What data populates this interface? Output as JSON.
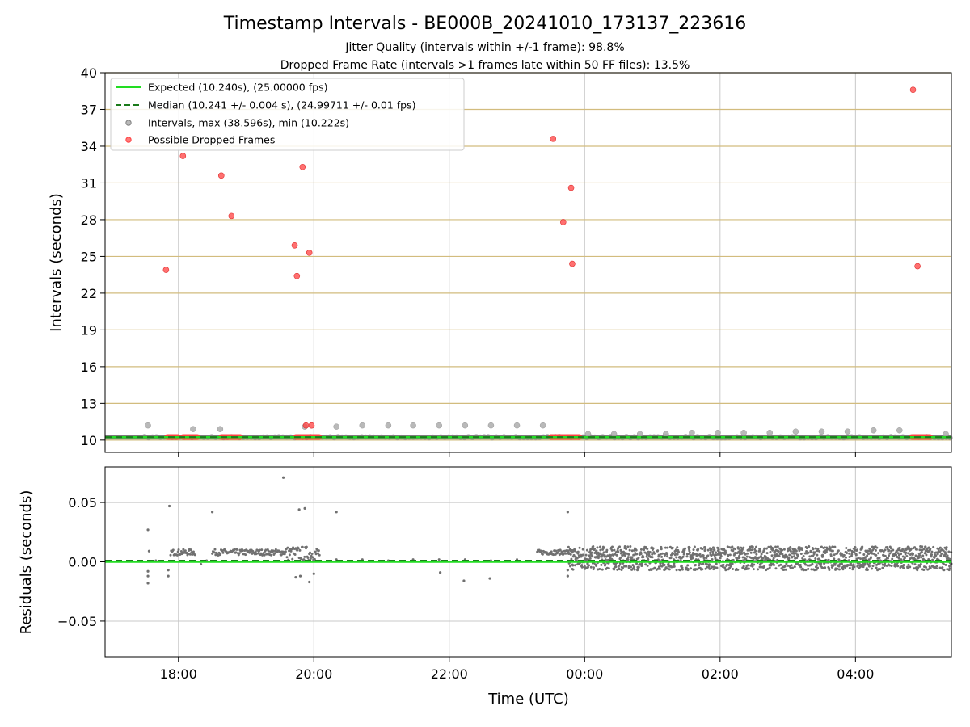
{
  "chart_data": [
    {
      "type": "scatter",
      "title": "Timestamp Intervals - BE000B_20241010_173137_223616",
      "subtitle_1": "Jitter Quality (intervals within +/-1 frame): 98.8%",
      "subtitle_2": "Dropped Frame Rate (intervals >1 frames late within 50 FF files): 13.5%",
      "xlabel": "",
      "ylabel": "Intervals (seconds)",
      "xlim": [
        "2024-10-10T16:55",
        "2024-10-11T05:25"
      ],
      "ylim": [
        9,
        40
      ],
      "yticks": [
        10,
        13,
        16,
        19,
        22,
        25,
        28,
        31,
        34,
        37,
        40
      ],
      "grid_color_horizontal": "#d2bc7e",
      "grid": true,
      "legend_position": "top-left",
      "legend": [
        "Expected (10.240s), (25.00000 fps)",
        "Median (10.241 +/- 0.004 s), (24.99711 +/- 0.01 fps)",
        "Intervals, max (38.596s), min (10.222s)",
        "Possible Dropped Frames"
      ],
      "expected_interval": 10.24,
      "median_interval": 10.241,
      "series": [
        {
          "name": "Possible Dropped Frames",
          "color": "#ff4040",
          "points": [
            [
              "17:49",
              23.9
            ],
            [
              "18:04",
              33.2
            ],
            [
              "18:38",
              31.6
            ],
            [
              "18:47",
              28.3
            ],
            [
              "19:43",
              25.9
            ],
            [
              "19:45",
              23.4
            ],
            [
              "19:50",
              32.3
            ],
            [
              "19:56",
              25.3
            ],
            [
              "19:53",
              11.2
            ],
            [
              "19:58",
              11.2
            ],
            [
              "23:32",
              34.6
            ],
            [
              "23:41",
              27.8
            ],
            [
              "23:48",
              30.6
            ],
            [
              "23:49",
              24.4
            ],
            [
              "04:51",
              38.6
            ],
            [
              "04:55",
              24.2
            ]
          ],
          "clusters": [
            [
              "17:50",
              "18:00"
            ],
            [
              "18:04",
              "18:17"
            ],
            [
              "18:38",
              "18:55"
            ],
            [
              "19:44",
              "20:05"
            ],
            [
              "23:30",
              "23:45"
            ],
            [
              "23:45",
              "23:56"
            ],
            [
              "04:50",
              "05:06"
            ]
          ]
        },
        {
          "name": "Intervals, max (38.596s), min (10.222s)",
          "color": "#808080",
          "points": [
            [
              "17:33",
              11.2
            ],
            [
              "18:13",
              10.9
            ],
            [
              "18:37",
              10.9
            ],
            [
              "19:52",
              11.1
            ],
            [
              "20:20",
              11.1
            ],
            [
              "20:43",
              11.2
            ],
            [
              "21:06",
              11.2
            ],
            [
              "21:28",
              11.2
            ],
            [
              "21:51",
              11.2
            ],
            [
              "22:14",
              11.2
            ],
            [
              "22:37",
              11.2
            ],
            [
              "23:00",
              11.2
            ],
            [
              "23:23",
              11.2
            ],
            [
              "00:03",
              10.5
            ],
            [
              "00:26",
              10.5
            ],
            [
              "00:49",
              10.5
            ],
            [
              "01:12",
              10.5
            ],
            [
              "01:35",
              10.6
            ],
            [
              "01:58",
              10.6
            ],
            [
              "02:21",
              10.6
            ],
            [
              "02:44",
              10.6
            ],
            [
              "03:07",
              10.7
            ],
            [
              "03:30",
              10.7
            ],
            [
              "03:53",
              10.7
            ],
            [
              "04:16",
              10.8
            ],
            [
              "04:39",
              10.8
            ],
            [
              "05:20",
              10.5
            ]
          ]
        }
      ]
    },
    {
      "type": "scatter",
      "xlabel": "Time (UTC)",
      "ylabel": "Residuals (seconds)",
      "xlim": [
        "2024-10-10T16:55",
        "2024-10-11T05:25"
      ],
      "ylim": [
        -0.08,
        0.08
      ],
      "yticks": [
        0.05,
        0.0,
        -0.05
      ],
      "ytick_labels": [
        "0.05",
        "0.00",
        "−0.05"
      ],
      "xticks": [
        "18:00",
        "20:00",
        "22:00",
        "00:00",
        "02:00",
        "04:00"
      ],
      "grid": true,
      "expected_residual": 0.0,
      "median_residual": 0.001,
      "series": [
        {
          "name": "Residuals",
          "color": "#707070",
          "outliers": [
            [
              "17:33",
              0.027
            ],
            [
              "17:33",
              -0.018
            ],
            [
              "17:33",
              -0.012
            ],
            [
              "17:34",
              0.009
            ],
            [
              "17:33",
              -0.008
            ],
            [
              "17:52",
              0.047
            ],
            [
              "17:51",
              -0.012
            ],
            [
              "17:51",
              -0.007
            ],
            [
              "18:30",
              0.042
            ],
            [
              "19:33",
              0.071
            ],
            [
              "19:47",
              0.044
            ],
            [
              "19:52",
              0.045
            ],
            [
              "20:20",
              0.042
            ],
            [
              "23:45",
              0.042
            ],
            [
              "19:44",
              -0.013
            ],
            [
              "19:48",
              -0.012
            ],
            [
              "19:56",
              -0.017
            ],
            [
              "20:00",
              -0.01
            ],
            [
              "21:52",
              -0.009
            ],
            [
              "22:13",
              -0.016
            ],
            [
              "22:36",
              -0.014
            ],
            [
              "23:45",
              -0.012
            ],
            [
              "23:45",
              -0.007
            ]
          ],
          "bands": [
            {
              "from": "17:53",
              "to": "18:15",
              "level": 0.008,
              "spread": 0.0025
            },
            {
              "from": "18:30",
              "to": "19:35",
              "level": 0.008,
              "spread": 0.0025
            },
            {
              "from": "19:35",
              "to": "20:05",
              "level": 0.007,
              "spread": 0.006
            },
            {
              "from": "23:18",
              "to": "23:50",
              "level": 0.008,
              "spread": 0.002
            },
            {
              "from": "23:45",
              "to": "05:25",
              "level": 0.003,
              "spread": 0.01
            }
          ],
          "sparse": [
            [
              "20:20",
              0.002
            ],
            [
              "20:43",
              0.002
            ],
            [
              "21:06",
              0.001
            ],
            [
              "21:28",
              0.002
            ],
            [
              "21:51",
              0.002
            ],
            [
              "22:14",
              0.002
            ],
            [
              "22:37",
              0.001
            ],
            [
              "23:00",
              0.002
            ],
            [
              "17:40",
              0.001
            ],
            [
              "18:20",
              -0.002
            ],
            [
              "18:25",
              0.001
            ]
          ]
        }
      ]
    }
  ],
  "colors": {
    "expected": "#22dd22",
    "median": "#1a7a1a",
    "dropped": "#ff4040",
    "intervals": "#808080",
    "residual": "#707070",
    "vgrid": "#c8c8c8",
    "hgrid_top": "#d2bc7e",
    "hgrid_bottom": "#c8c8c8"
  }
}
